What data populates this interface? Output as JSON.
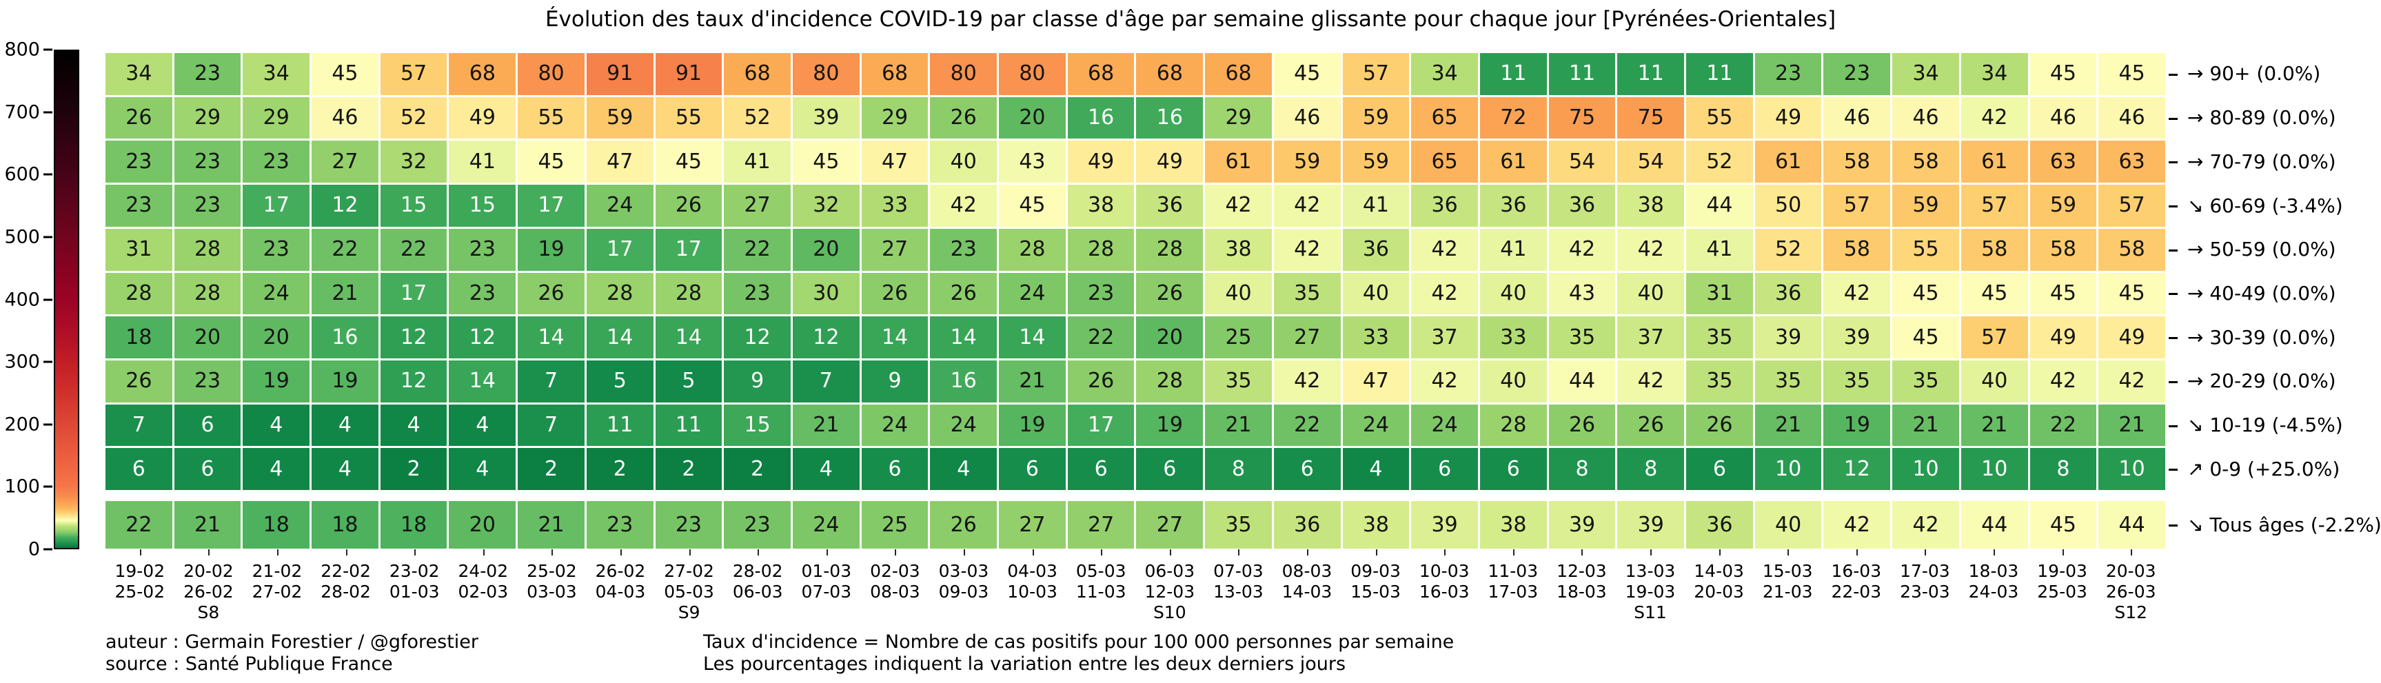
{
  "title": "Évolution des taux d'incidence COVID-19 par classe d'âge par semaine glissante pour chaque jour [Pyrénées-Orientales]",
  "footer": {
    "author": "auteur : Germain Forestier / @gforestier",
    "source": "source : Santé Publique France",
    "note1": "Taux d'incidence = Nombre de cas positifs pour 100 000 personnes par semaine",
    "note2": "Les pourcentages indiquent la variation entre les deux derniers jours"
  },
  "chart_data": {
    "type": "heatmap",
    "title": "Évolution des taux d'incidence COVID-19 par classe d'âge par semaine glissante pour chaque jour [Pyrénées-Orientales]",
    "ylim": [
      0,
      800
    ],
    "colorbar_ticks": [
      0,
      100,
      200,
      300,
      400,
      500,
      600,
      700,
      800
    ],
    "colormap_stops": [
      [
        0,
        "#067a3d"
      ],
      [
        5,
        "#138a49"
      ],
      [
        10,
        "#279a51"
      ],
      [
        17,
        "#44ad5b"
      ],
      [
        22,
        "#70c165"
      ],
      [
        28,
        "#9ad36c"
      ],
      [
        34,
        "#b6de76"
      ],
      [
        38,
        "#d5ec8b"
      ],
      [
        42,
        "#f0f9a8"
      ],
      [
        45,
        "#fdfdb8"
      ],
      [
        48,
        "#feef9d"
      ],
      [
        52,
        "#fee289"
      ],
      [
        57,
        "#fdcf70"
      ],
      [
        63,
        "#fdb95f"
      ],
      [
        68,
        "#fcab55"
      ],
      [
        75,
        "#fa9d51"
      ],
      [
        85,
        "#f8894c"
      ],
      [
        100,
        "#f67547"
      ],
      [
        150,
        "#ec5c3e"
      ],
      [
        200,
        "#dd4836"
      ],
      [
        250,
        "#d0302b"
      ],
      [
        300,
        "#c21e28"
      ],
      [
        350,
        "#ae0e26"
      ],
      [
        400,
        "#9b0325"
      ],
      [
        450,
        "#880222"
      ],
      [
        500,
        "#72041f"
      ],
      [
        600,
        "#470318"
      ],
      [
        700,
        "#20020c"
      ],
      [
        800,
        "#000000"
      ]
    ],
    "x_labels": [
      {
        "start": "19-02",
        "end": "25-02",
        "week": ""
      },
      {
        "start": "20-02",
        "end": "26-02",
        "week": "S8"
      },
      {
        "start": "21-02",
        "end": "27-02",
        "week": ""
      },
      {
        "start": "22-02",
        "end": "28-02",
        "week": ""
      },
      {
        "start": "23-02",
        "end": "01-03",
        "week": ""
      },
      {
        "start": "24-02",
        "end": "02-03",
        "week": ""
      },
      {
        "start": "25-02",
        "end": "03-03",
        "week": ""
      },
      {
        "start": "26-02",
        "end": "04-03",
        "week": ""
      },
      {
        "start": "27-02",
        "end": "05-03",
        "week": "S9"
      },
      {
        "start": "28-02",
        "end": "06-03",
        "week": ""
      },
      {
        "start": "01-03",
        "end": "07-03",
        "week": ""
      },
      {
        "start": "02-03",
        "end": "08-03",
        "week": ""
      },
      {
        "start": "03-03",
        "end": "09-03",
        "week": ""
      },
      {
        "start": "04-03",
        "end": "10-03",
        "week": ""
      },
      {
        "start": "05-03",
        "end": "11-03",
        "week": ""
      },
      {
        "start": "06-03",
        "end": "12-03",
        "week": "S10"
      },
      {
        "start": "07-03",
        "end": "13-03",
        "week": ""
      },
      {
        "start": "08-03",
        "end": "14-03",
        "week": ""
      },
      {
        "start": "09-03",
        "end": "15-03",
        "week": ""
      },
      {
        "start": "10-03",
        "end": "16-03",
        "week": ""
      },
      {
        "start": "11-03",
        "end": "17-03",
        "week": ""
      },
      {
        "start": "12-03",
        "end": "18-03",
        "week": ""
      },
      {
        "start": "13-03",
        "end": "19-03",
        "week": "S11"
      },
      {
        "start": "14-03",
        "end": "20-03",
        "week": ""
      },
      {
        "start": "15-03",
        "end": "21-03",
        "week": ""
      },
      {
        "start": "16-03",
        "end": "22-03",
        "week": ""
      },
      {
        "start": "17-03",
        "end": "23-03",
        "week": ""
      },
      {
        "start": "18-03",
        "end": "24-03",
        "week": ""
      },
      {
        "start": "19-03",
        "end": "25-03",
        "week": ""
      },
      {
        "start": "20-03",
        "end": "26-03",
        "week": "S12"
      }
    ],
    "rows": [
      {
        "label": "90+",
        "trend": "→",
        "change": "0.0%",
        "values": [
          34,
          23,
          34,
          45,
          57,
          68,
          80,
          91,
          91,
          68,
          80,
          68,
          80,
          80,
          68,
          68,
          68,
          45,
          57,
          34,
          11,
          11,
          11,
          11,
          23,
          23,
          34,
          34,
          45,
          45
        ]
      },
      {
        "label": "80-89",
        "trend": "→",
        "change": "0.0%",
        "values": [
          26,
          29,
          29,
          46,
          52,
          49,
          55,
          59,
          55,
          52,
          39,
          29,
          26,
          20,
          16,
          16,
          29,
          46,
          59,
          65,
          72,
          75,
          75,
          55,
          49,
          46,
          46,
          42,
          46,
          46
        ]
      },
      {
        "label": "70-79",
        "trend": "→",
        "change": "0.0%",
        "values": [
          23,
          23,
          23,
          27,
          32,
          41,
          45,
          47,
          45,
          41,
          45,
          47,
          40,
          43,
          49,
          49,
          61,
          59,
          59,
          65,
          61,
          54,
          54,
          52,
          61,
          58,
          58,
          61,
          63,
          63
        ]
      },
      {
        "label": "60-69",
        "trend": "↘",
        "change": "-3.4%",
        "values": [
          23,
          23,
          17,
          12,
          15,
          15,
          17,
          24,
          26,
          27,
          32,
          33,
          42,
          45,
          38,
          36,
          42,
          42,
          41,
          36,
          36,
          36,
          38,
          44,
          50,
          57,
          59,
          57,
          59,
          57
        ]
      },
      {
        "label": "50-59",
        "trend": "→",
        "change": "0.0%",
        "values": [
          31,
          28,
          23,
          22,
          22,
          23,
          19,
          17,
          17,
          22,
          20,
          27,
          23,
          28,
          28,
          28,
          38,
          42,
          36,
          42,
          41,
          42,
          42,
          41,
          52,
          58,
          55,
          58,
          58,
          58
        ]
      },
      {
        "label": "40-49",
        "trend": "→",
        "change": "0.0%",
        "values": [
          28,
          28,
          24,
          21,
          17,
          23,
          26,
          28,
          28,
          23,
          30,
          26,
          26,
          24,
          23,
          26,
          40,
          35,
          40,
          42,
          40,
          43,
          40,
          31,
          36,
          42,
          45,
          45,
          45,
          45
        ]
      },
      {
        "label": "30-39",
        "trend": "→",
        "change": "0.0%",
        "values": [
          18,
          20,
          20,
          16,
          12,
          12,
          14,
          14,
          14,
          12,
          12,
          14,
          14,
          14,
          22,
          20,
          25,
          27,
          33,
          37,
          33,
          35,
          37,
          35,
          39,
          39,
          45,
          57,
          49,
          49
        ]
      },
      {
        "label": "20-29",
        "trend": "→",
        "change": "0.0%",
        "values": [
          26,
          23,
          19,
          19,
          12,
          14,
          7,
          5,
          5,
          9,
          7,
          9,
          16,
          21,
          26,
          28,
          35,
          42,
          47,
          42,
          40,
          44,
          42,
          35,
          35,
          35,
          35,
          40,
          42,
          42
        ]
      },
      {
        "label": "10-19",
        "trend": "↘",
        "change": "-4.5%",
        "values": [
          7,
          6,
          4,
          4,
          4,
          4,
          7,
          11,
          11,
          15,
          21,
          24,
          24,
          19,
          17,
          19,
          21,
          22,
          24,
          24,
          28,
          26,
          26,
          26,
          21,
          19,
          21,
          21,
          22,
          21
        ]
      },
      {
        "label": "0-9",
        "trend": "↗",
        "change": "+25.0%",
        "values": [
          6,
          6,
          4,
          4,
          2,
          4,
          2,
          2,
          2,
          2,
          4,
          6,
          4,
          6,
          6,
          6,
          8,
          6,
          4,
          6,
          6,
          8,
          8,
          6,
          10,
          12,
          10,
          10,
          8,
          10
        ]
      }
    ],
    "total_row": {
      "label": "Tous âges",
      "trend": "↘",
      "change": "-2.2%",
      "values": [
        22,
        21,
        18,
        18,
        18,
        20,
        21,
        23,
        23,
        23,
        24,
        25,
        26,
        27,
        27,
        27,
        35,
        36,
        38,
        39,
        38,
        39,
        39,
        36,
        40,
        42,
        42,
        44,
        45,
        44
      ]
    }
  }
}
